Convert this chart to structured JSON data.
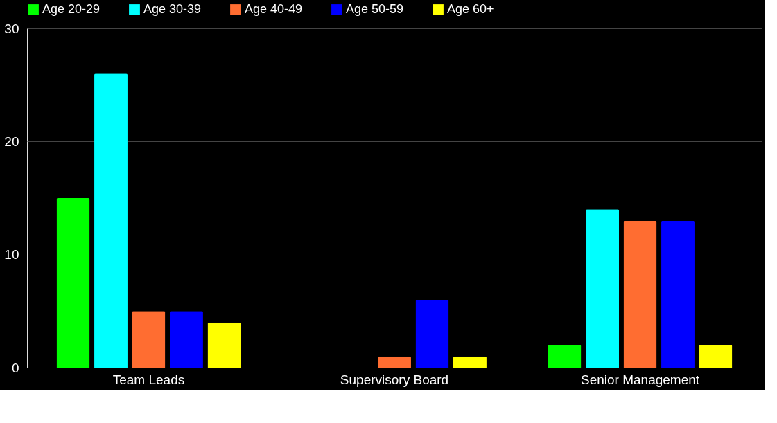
{
  "chart_data": {
    "type": "bar",
    "categories": [
      "Team Leads",
      "Supervisory Board",
      "Senior Management"
    ],
    "series": [
      {
        "name": "Age 20-29",
        "color": "#00ff00",
        "values": [
          15,
          0,
          2
        ]
      },
      {
        "name": "Age 30-39",
        "color": "#00ffff",
        "values": [
          26,
          0,
          14
        ]
      },
      {
        "name": "Age 40-49",
        "color": "#ff6d31",
        "values": [
          5,
          1,
          13
        ]
      },
      {
        "name": "Age 50-59",
        "color": "#0000ff",
        "values": [
          5,
          6,
          13
        ]
      },
      {
        "name": "Age 60+",
        "color": "#ffff00",
        "values": [
          4,
          1,
          2
        ]
      }
    ],
    "ylim": [
      0,
      30
    ],
    "yticks": [
      0,
      10,
      20,
      30
    ],
    "grid": "y",
    "legend": "top"
  }
}
